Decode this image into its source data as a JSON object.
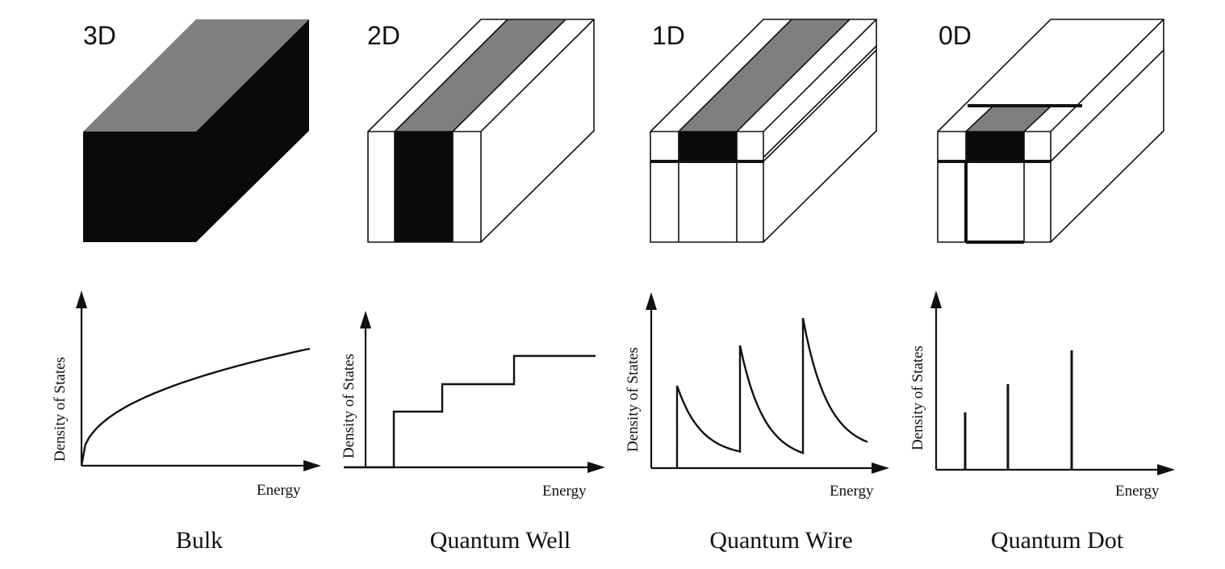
{
  "panels": [
    {
      "dimension": "3D",
      "caption": "Bulk",
      "ylabel": "Density of States",
      "xlabel": "Energy",
      "dos_shape": "sqrt"
    },
    {
      "dimension": "2D",
      "caption": "Quantum Well",
      "ylabel": "Density of States",
      "xlabel": "Energy",
      "dos_shape": "step"
    },
    {
      "dimension": "1D",
      "caption": "Quantum Wire",
      "ylabel": "Density of States",
      "xlabel": "Energy",
      "dos_shape": "inverse-sqrt-peaks"
    },
    {
      "dimension": "0D",
      "caption": "Quantum Dot",
      "ylabel": "Density of States",
      "xlabel": "Energy",
      "dos_shape": "delta"
    }
  ],
  "colors": {
    "ink": "#111111",
    "confined_front": "#0a0a0a",
    "confined_top": "#7f7f7f",
    "barrier": "#ffffff"
  }
}
